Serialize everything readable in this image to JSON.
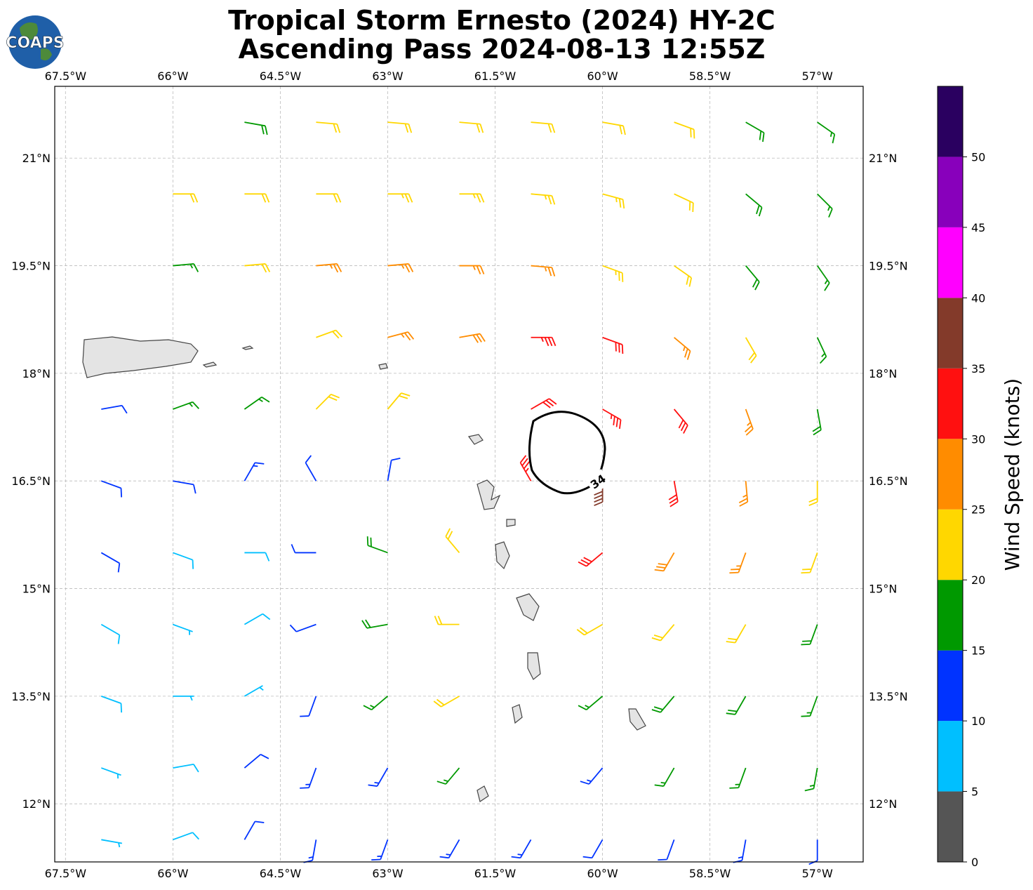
{
  "header": {
    "title_line1": "Tropical Storm Ernesto (2024) HY-2C",
    "title_line2": "Ascending Pass 2024-08-13 12:55Z",
    "logo": "COAPS"
  },
  "map": {
    "xlim": [
      -67.65,
      -56.36
    ],
    "ylim": [
      11.19,
      22.0
    ],
    "lon_ticks": [
      {
        "value": -67.5,
        "label": "67.5°W"
      },
      {
        "value": -66,
        "label": "66°W"
      },
      {
        "value": -64.5,
        "label": "64.5°W"
      },
      {
        "value": -63,
        "label": "63°W"
      },
      {
        "value": -61.5,
        "label": "61.5°W"
      },
      {
        "value": -60,
        "label": "60°W"
      },
      {
        "value": -58.5,
        "label": "58.5°W"
      },
      {
        "value": -57,
        "label": "57°W"
      }
    ],
    "lat_ticks": [
      {
        "value": 12,
        "label": "12°N"
      },
      {
        "value": 13.5,
        "label": "13.5°N"
      },
      {
        "value": 15,
        "label": "15°N"
      },
      {
        "value": 16.5,
        "label": "16.5°N"
      },
      {
        "value": 18,
        "label": "18°N"
      },
      {
        "value": 19.5,
        "label": "19.5°N"
      },
      {
        "value": 21,
        "label": "21°N"
      }
    ],
    "contour_label": "34",
    "wind": {
      "lons": [
        -67,
        -66,
        -65,
        -64,
        -63,
        -62,
        -61,
        -60,
        -59,
        -58,
        -57
      ],
      "lats": [
        21.5,
        20.5,
        19.5,
        18.5,
        17.5,
        16.5,
        15.5,
        14.5,
        13.5,
        12.5,
        11.5
      ],
      "speed": [
        [
          null,
          null,
          18,
          20,
          22,
          22,
          22,
          22,
          20,
          18,
          17
        ],
        [
          null,
          22,
          22,
          22,
          23,
          24,
          24,
          23,
          22,
          18,
          17
        ],
        [
          null,
          17,
          20,
          27,
          27,
          27,
          26,
          24,
          22,
          18,
          17
        ],
        [
          null,
          null,
          null,
          22,
          26,
          29,
          33,
          30,
          25,
          20,
          17
        ],
        [
          12,
          15,
          17,
          20,
          21,
          null,
          30,
          34,
          31,
          25,
          19
        ],
        [
          12,
          12,
          14,
          11,
          12,
          null,
          33,
          38,
          31,
          27,
          20
        ],
        [
          11,
          9,
          9,
          12,
          18,
          22,
          null,
          32,
          28,
          26,
          20
        ],
        [
          8,
          7,
          9,
          11,
          18,
          22,
          null,
          22,
          22,
          20,
          18
        ],
        [
          8,
          7,
          7,
          12,
          16,
          20,
          null,
          15,
          18,
          18,
          17
        ],
        [
          7,
          8,
          11,
          13,
          14,
          17,
          null,
          13,
          15,
          16,
          15
        ],
        [
          7,
          8,
          12,
          13,
          13,
          13,
          14,
          12,
          12,
          13,
          12
        ]
      ],
      "direction": [
        [
          null,
          null,
          100,
          95,
          95,
          95,
          95,
          100,
          110,
          120,
          125
        ],
        [
          null,
          90,
          90,
          90,
          90,
          90,
          95,
          105,
          115,
          130,
          135
        ],
        [
          null,
          85,
          85,
          85,
          85,
          90,
          95,
          110,
          125,
          140,
          145
        ],
        [
          null,
          null,
          null,
          70,
          75,
          80,
          90,
          110,
          130,
          150,
          155
        ],
        [
          80,
          70,
          55,
          45,
          40,
          null,
          60,
          120,
          140,
          160,
          170
        ],
        [
          110,
          100,
          30,
          330,
          10,
          null,
          330,
          180,
          170,
          175,
          180
        ],
        [
          120,
          110,
          90,
          270,
          290,
          320,
          null,
          230,
          210,
          200,
          200
        ],
        [
          120,
          110,
          60,
          250,
          260,
          270,
          null,
          240,
          220,
          210,
          200
        ],
        [
          110,
          90,
          60,
          200,
          230,
          240,
          null,
          230,
          220,
          210,
          200
        ],
        [
          110,
          80,
          50,
          200,
          210,
          220,
          null,
          220,
          210,
          200,
          190
        ],
        [
          100,
          70,
          30,
          190,
          200,
          210,
          210,
          210,
          200,
          190,
          180
        ]
      ]
    }
  },
  "colorbar": {
    "label": "Wind Speed (knots)",
    "range": [
      0,
      55
    ],
    "ticks": [
      0,
      5,
      10,
      15,
      20,
      25,
      30,
      35,
      40,
      45,
      50
    ],
    "colors": [
      "#555555",
      "#00bfff",
      "#0033ff",
      "#009900",
      "#ffd700",
      "#ff8c00",
      "#ff1010",
      "#833a2a",
      "#ff00ff",
      "#8800bb",
      "#2a0060"
    ]
  }
}
